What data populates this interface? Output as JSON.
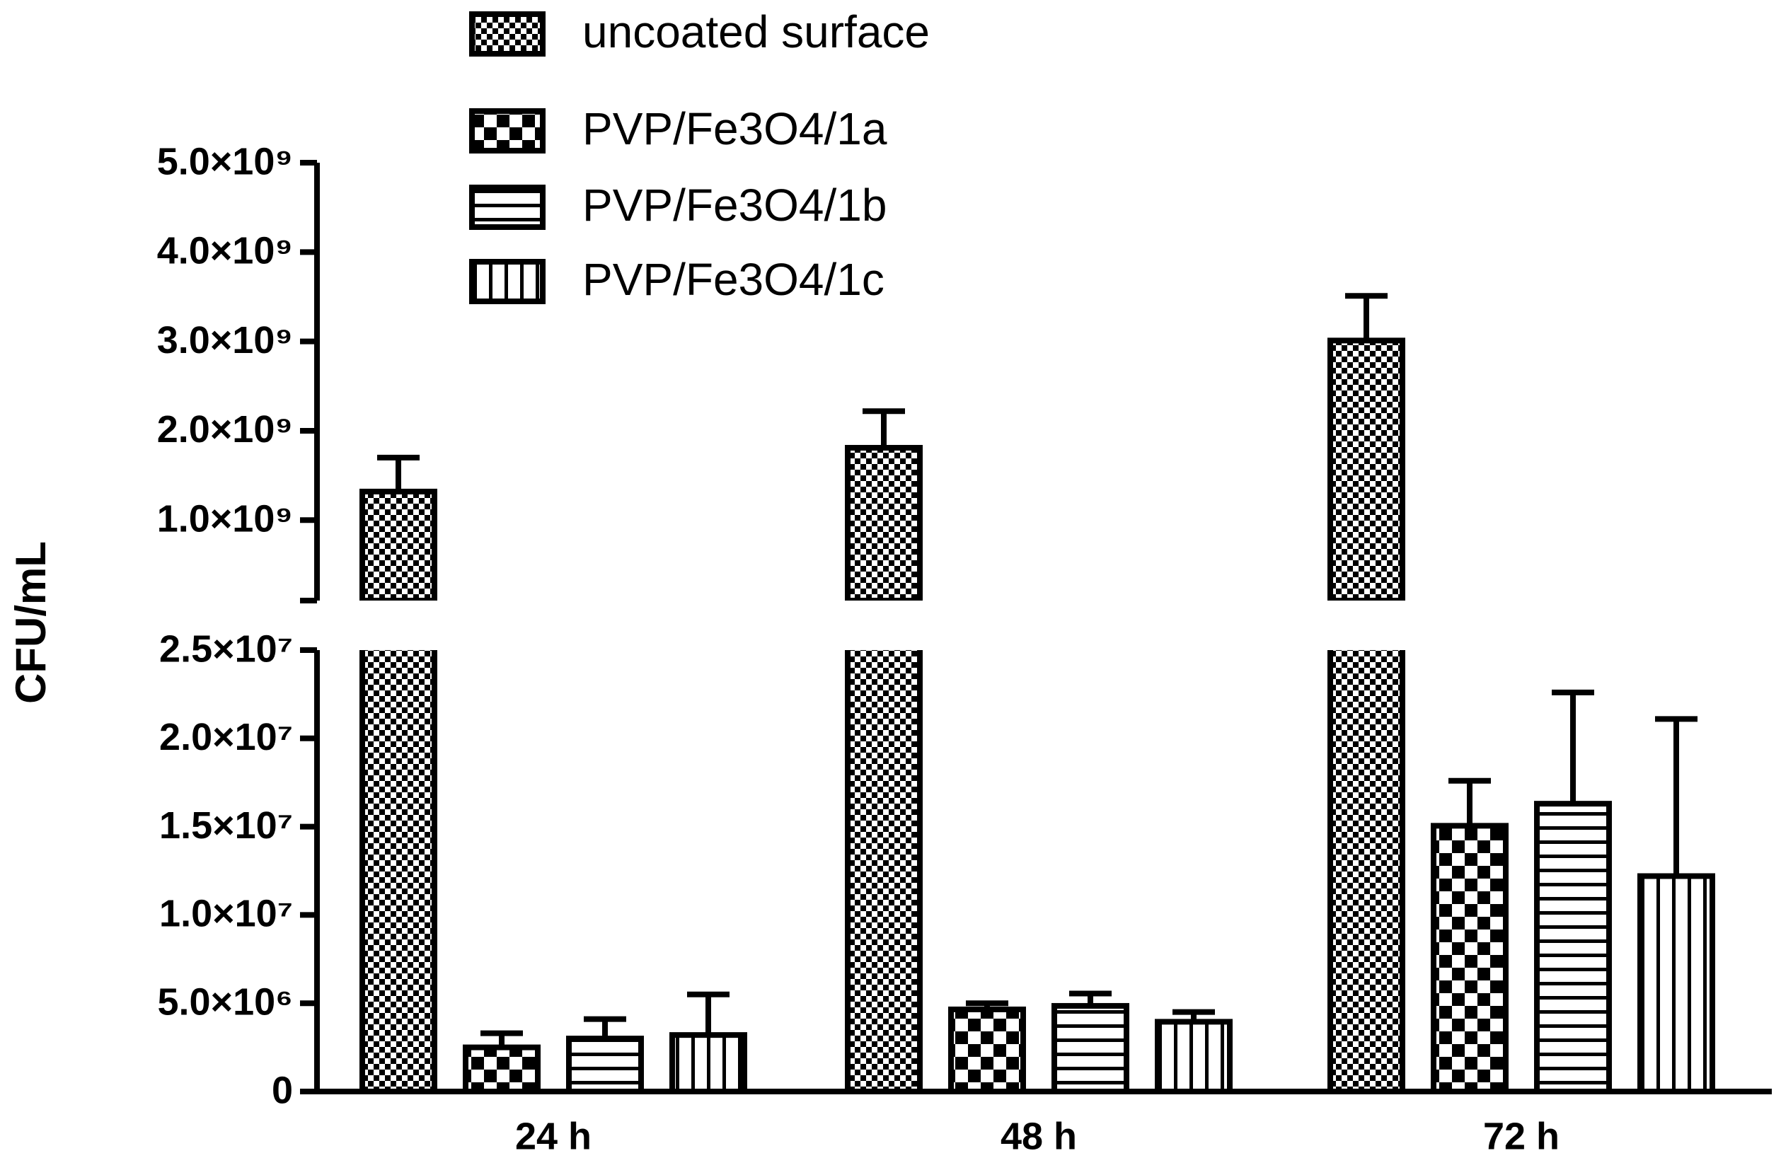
{
  "chart_data": {
    "type": "bar",
    "y_label": "CFU/mL",
    "categories": [
      "24 h",
      "48 h",
      "72 h"
    ],
    "series": [
      {
        "name": "uncoated surface",
        "color": "#000000",
        "pattern": "checker-fine",
        "values": [
          1320000000,
          1810000000,
          3010000000
        ],
        "errors": [
          380000000,
          410000000,
          500000000
        ]
      },
      {
        "name": "PVP/Fe3O4/1a",
        "color": "#000000",
        "pattern": "checker-coarse",
        "values": [
          2500000,
          4650000,
          15050000
        ],
        "errors": [
          800000,
          350000,
          2550000
        ]
      },
      {
        "name": "PVP/Fe3O4/1b",
        "color": "#000000",
        "pattern": "hlines",
        "values": [
          3000000,
          4850000,
          16300000
        ],
        "errors": [
          1100000,
          700000,
          6300000
        ]
      },
      {
        "name": "PVP/Fe3O4/1c",
        "color": "#000000",
        "pattern": "vlines",
        "values": [
          3200000,
          3950000,
          12200000
        ],
        "errors": [
          2300000,
          550000,
          8900000
        ]
      }
    ],
    "ylim": [
      0,
      25000000
    ],
    "yticks": [
      0,
      {
        "value": 5000000,
        "label": "5.0×10⁶"
      },
      {
        "value": 10000000,
        "label": "1.0×10⁷"
      },
      {
        "value": 15000000,
        "label": "1.5×10⁷"
      },
      {
        "value": 20000000,
        "label": "2.0×10⁷"
      },
      {
        "value": 25000000,
        "label": "2.5×10⁷"
      }
    ],
    "upper_ylim": [
      100000000,
      5000000000
    ],
    "upper_yticks": [
      {
        "value": 1000000000,
        "label": "1.0×10⁹"
      },
      {
        "value": 2000000000,
        "label": "2.0×10⁹"
      },
      {
        "value": 3000000000,
        "label": "3.0×10⁹"
      },
      {
        "value": 4000000000,
        "label": "4.0×10⁹"
      },
      {
        "value": 5000000000,
        "label": "5.0×10⁹"
      }
    ],
    "axis_break": true,
    "legend": "top"
  }
}
